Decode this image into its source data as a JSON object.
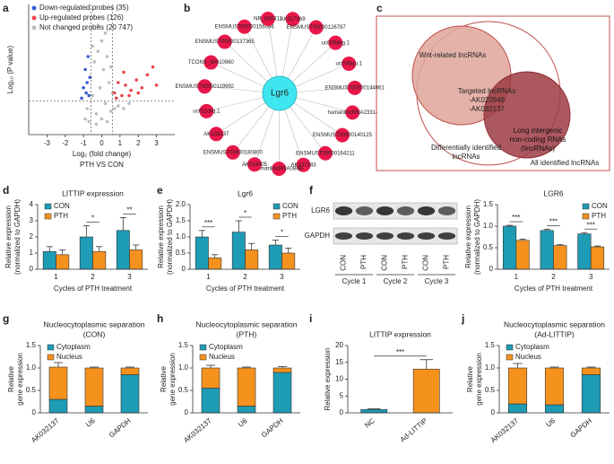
{
  "panel_letters": [
    "a",
    "b",
    "c",
    "d",
    "e",
    "f",
    "g",
    "h",
    "i",
    "j"
  ],
  "network": {
    "center": "Lgr6",
    "nodes": [
      "AK017369",
      "ENSMUST00000126787",
      "uc009ahg.1",
      "uc008iqu.1",
      "ENSMUST00000144661",
      "humanlincRNA2331-",
      "ENSMUST00000140125",
      "ENSMUST00000164211",
      "AK137343",
      "humanlincRNA0848-",
      "AK018405",
      "ENSMUST00000180800",
      "AK133137",
      "uc011ckq.1",
      "ENSMUST00000119992",
      "TCONS_00010960",
      "ENSMUST00000137365",
      "ENSMUST00000156086",
      "NR_040411"
    ]
  },
  "venn": {
    "wnt": "Wnt-related lncRNAs",
    "targeted": [
      "Targeted lncRNAs",
      "-AK020949",
      "-AK032137"
    ],
    "linc": [
      "Long intergenic",
      "non-coding RNAs",
      "(lincRNAs)"
    ],
    "differential": [
      "Differentially identified",
      "lncRNAs"
    ],
    "all": "All identified lncRNAs"
  },
  "blot": {
    "rows": [
      "LGR6",
      "GAPDH"
    ],
    "lanes": [
      "CON",
      "PTH",
      "CON",
      "PTH",
      "CON",
      "PTH"
    ],
    "cycles": [
      "Cycle 1",
      "Cycle 2",
      "Cycle 3"
    ]
  },
  "chart_data": [
    {
      "type": "scatter",
      "x_label": "Log₂ (fold change)",
      "y_label": "Log₁₀ (P value)",
      "subtitle": "PTH VS CON",
      "xlim": [
        -4,
        4
      ],
      "xticks": [
        -3,
        -2,
        -1,
        0,
        1,
        2,
        3
      ],
      "ylim": [
        0,
        5
      ],
      "legend": "upper left",
      "thresholds": {
        "x": [
          -0.58,
          0.58
        ],
        "y": 1.3
      },
      "series": [
        {
          "name": "Down-regulated probes (35)",
          "color": "#3a5fd6",
          "x": [
            -0.7,
            -0.8,
            -0.9,
            -0.75,
            -1.0,
            -0.65,
            -0.85,
            -1.1
          ],
          "y": [
            1.5,
            2.0,
            2.5,
            3.0,
            1.8,
            2.2,
            1.6,
            1.4
          ]
        },
        {
          "name": "Up-regulated probes (126)",
          "color": "#e8474a",
          "x": [
            0.7,
            0.9,
            1.1,
            1.3,
            1.6,
            1.9,
            2.2,
            2.5,
            2.8,
            3.0,
            0.8,
            1.5,
            2.0,
            1.2
          ],
          "y": [
            1.6,
            2.0,
            1.5,
            1.9,
            1.7,
            2.1,
            1.8,
            2.3,
            2.6,
            1.9,
            1.4,
            1.5,
            1.6,
            2.4
          ]
        },
        {
          "name": "Not changed probes (20 747)",
          "color": "#bdbdbd",
          "x": [
            -0.8,
            -0.6,
            -0.5,
            -0.4,
            -0.3,
            -0.2,
            -0.1,
            0,
            0.1,
            0.2,
            0.3,
            0.4,
            0.5,
            0.6,
            -0.7,
            -0.3,
            0,
            0.3,
            0.7,
            -0.5,
            0.5,
            -0.2,
            0.2,
            0.9,
            1.2,
            1.5,
            -0.9
          ],
          "y": [
            1.0,
            2.2,
            1.5,
            2.8,
            0.8,
            3.2,
            1.8,
            3.6,
            2.5,
            1.2,
            3.0,
            2.0,
            0.9,
            1.6,
            0.5,
            0.4,
            0.6,
            0.5,
            1.0,
            3.4,
            2.6,
            4.2,
            3.9,
            1.1,
            1.0,
            1.2,
            0.6
          ]
        }
      ]
    },
    {
      "type": "bar",
      "title": [
        "LITTIP expression"
      ],
      "y_label": [
        "Relative expression",
        "(normalized to GAPDH)"
      ],
      "x_label": "Cycles of PTH treatment",
      "categories": [
        "1",
        "2",
        "3"
      ],
      "ylim": [
        0,
        4
      ],
      "yticks": [
        0,
        1,
        2,
        3,
        4
      ],
      "legend": "upper left",
      "series": [
        {
          "name": "CON",
          "color": "#1e9bb5",
          "values": [
            1.1,
            2.0,
            2.4
          ],
          "errors": [
            0.3,
            0.7,
            0.8
          ]
        },
        {
          "name": "PTH",
          "color": "#f5921e",
          "values": [
            0.9,
            1.1,
            1.2
          ],
          "errors": [
            0.3,
            0.3,
            0.3
          ]
        }
      ],
      "annotations": [
        {
          "categories": [
            "2"
          ],
          "text": "*"
        },
        {
          "categories": [
            "3"
          ],
          "text": "**"
        }
      ]
    },
    {
      "type": "bar",
      "title": [
        "Lgr6"
      ],
      "y_label": [
        "Relative expression",
        "(normalized to GAPDH)"
      ],
      "x_label": "Cycles of PTH treatment",
      "categories": [
        "1",
        "2",
        "3"
      ],
      "ylim": [
        0,
        2
      ],
      "yticks": [
        0,
        0.5,
        {
          "value": 1,
          "label": "1.0"
        },
        1.5,
        {
          "value": 2,
          "label": "2.0"
        }
      ],
      "legend": "upper right",
      "series": [
        {
          "name": "CON",
          "color": "#1e9bb5",
          "values": [
            1.0,
            1.15,
            0.75
          ],
          "errors": [
            0.2,
            0.35,
            0.15
          ]
        },
        {
          "name": "PTH",
          "color": "#f5921e",
          "values": [
            0.35,
            0.6,
            0.5
          ],
          "errors": [
            0.1,
            0.2,
            0.15
          ]
        }
      ],
      "annotations": [
        {
          "categories": [
            "1"
          ],
          "text": "***"
        },
        {
          "categories": [
            "2"
          ],
          "text": "*"
        },
        {
          "categories": [
            "3"
          ],
          "text": "*"
        }
      ]
    },
    {
      "type": "bar",
      "title": [
        "LGR6"
      ],
      "y_label": [
        "Relative expression",
        "(normalized to GAPDH)"
      ],
      "x_label": "Cycles of PTH treatment",
      "categories": [
        "1",
        "2",
        "3"
      ],
      "ylim": [
        0,
        1.5
      ],
      "yticks": [
        0,
        0.5,
        {
          "value": 1,
          "label": "1.0"
        },
        1.5
      ],
      "legend": "upper right",
      "series": [
        {
          "name": "CON",
          "color": "#1e9bb5",
          "values": [
            1.0,
            0.9,
            0.82
          ],
          "errors": [
            0.02,
            0.03,
            0.03
          ]
        },
        {
          "name": "PTH",
          "color": "#f5921e",
          "values": [
            0.67,
            0.55,
            0.52
          ],
          "errors": [
            0.03,
            0.02,
            0.02
          ]
        }
      ],
      "annotations": [
        {
          "categories": [
            "1"
          ],
          "text": "***"
        },
        {
          "categories": [
            "2"
          ],
          "text": "***"
        },
        {
          "categories": [
            "3"
          ],
          "text": "***"
        }
      ]
    },
    {
      "type": "bar",
      "stacked": true,
      "title": [
        "Nucleocytoplasmic separation",
        "(CON)"
      ],
      "y_label": [
        "Relative",
        "gene expression"
      ],
      "categories": [
        "AK032137",
        "U6",
        "GAPDH"
      ],
      "x_label_rotation": -40,
      "ylim": [
        0,
        1.5
      ],
      "yticks": [
        0,
        0.5,
        {
          "value": 1,
          "label": "1.0"
        },
        1.5
      ],
      "legend": "upper left",
      "series": [
        {
          "name": "Cytoplasm",
          "color": "#1e9bb5",
          "values": [
            0.3,
            0.15,
            0.85
          ],
          "errors": [
            0.08,
            0.03,
            0.02
          ]
        },
        {
          "name": "Nucleus",
          "color": "#f5921e",
          "values": [
            0.72,
            0.85,
            0.15
          ],
          "errors": [
            0.1,
            0.02,
            0.02
          ]
        }
      ]
    },
    {
      "type": "bar",
      "stacked": true,
      "title": [
        "Nucleocytoplasmic separation",
        "(PTH)"
      ],
      "y_label": [
        "Relative",
        "gene expression"
      ],
      "categories": [
        "AK032137",
        "U6",
        "GAPDH"
      ],
      "x_label_rotation": -40,
      "ylim": [
        0,
        1.5
      ],
      "yticks": [
        0,
        0.5,
        {
          "value": 1,
          "label": "1.0"
        },
        1.5
      ],
      "legend": "upper left",
      "series": [
        {
          "name": "Cytoplasm",
          "color": "#1e9bb5",
          "values": [
            0.55,
            0.15,
            0.9
          ],
          "errors": [
            0.04,
            0.02,
            0.03
          ]
        },
        {
          "name": "Nucleus",
          "color": "#f5921e",
          "values": [
            0.45,
            0.85,
            0.1
          ],
          "errors": [
            0.06,
            0.02,
            0.03
          ]
        }
      ]
    },
    {
      "type": "bar",
      "title": [
        "LITTIP expression"
      ],
      "y_label": [
        "Relative expression"
      ],
      "categories": [
        "NC",
        "Ad-LITTIP"
      ],
      "x_label_rotation": -40,
      "ylim": [
        0,
        20
      ],
      "yticks": [
        0,
        5,
        10,
        15,
        20
      ],
      "values": [
        1,
        13
      ],
      "errors": [
        0.2,
        2.8
      ],
      "colors": [
        "#1e9bb5",
        "#f5921e"
      ],
      "annotations": [
        {
          "categories": [
            "NC",
            "Ad-LITTIP"
          ],
          "text": "***"
        }
      ]
    },
    {
      "type": "bar",
      "stacked": true,
      "title": [
        "Nucleocytoplasmic separation",
        "(Ad-LITTIP)"
      ],
      "y_label": [
        "Relative",
        "gene expression"
      ],
      "categories": [
        "AK032137",
        "U6",
        "GAPDH"
      ],
      "x_label_rotation": -40,
      "ylim": [
        0,
        1.5
      ],
      "yticks": [
        0,
        0.5,
        {
          "value": 1,
          "label": "1.0"
        },
        1.5
      ],
      "legend": "upper left",
      "series": [
        {
          "name": "Cytoplasm",
          "color": "#1e9bb5",
          "values": [
            0.2,
            0.18,
            0.85
          ],
          "errors": [
            0.06,
            0.03,
            0.02
          ]
        },
        {
          "name": "Nucleus",
          "color": "#f5921e",
          "values": [
            0.8,
            0.82,
            0.15
          ],
          "errors": [
            0.1,
            0.02,
            0.02
          ]
        }
      ]
    }
  ]
}
